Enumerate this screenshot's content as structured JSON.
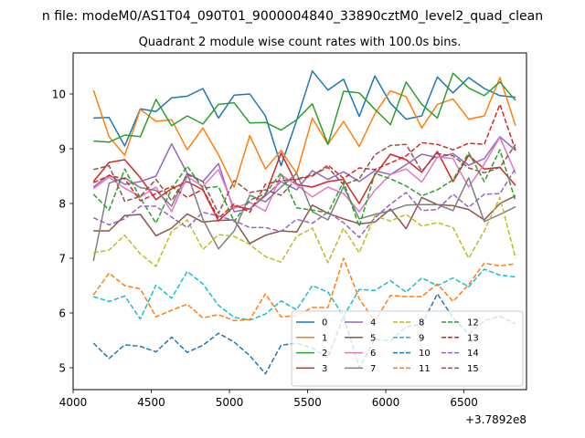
{
  "chart_data": {
    "type": "line",
    "title": "n file: modeM0/AS1T04_090T01_9000004840_33890cztM0_level2_quad_clean",
    "subtitle": "Quadrant 2 module wise count rates with 100.0s bins.",
    "xlabel": "",
    "ylabel": "",
    "x_offset_label": "+3.7892e8",
    "xlim": [
      4000,
      6900
    ],
    "ylim": [
      4.6,
      10.75
    ],
    "xticks": [
      4000,
      4500,
      5000,
      5500,
      6000,
      6500
    ],
    "xtick_labels": [
      "4000",
      "4500",
      "5000",
      "5500",
      "6000",
      "6500"
    ],
    "yticks": [
      5,
      6,
      7,
      8,
      9,
      10
    ],
    "ytick_labels": [
      "5",
      "6",
      "7",
      "8",
      "9",
      "10"
    ],
    "legend_position": "lower-right",
    "legend_columns": 4,
    "x": [
      4130,
      4230,
      4330,
      4430,
      4530,
      4630,
      4730,
      4830,
      4930,
      5030,
      5130,
      5230,
      5330,
      5430,
      5530,
      5630,
      5730,
      5830,
      5930,
      6030,
      6130,
      6230,
      6330,
      6430,
      6530,
      6630,
      6730,
      6830
    ],
    "series": [
      {
        "name": "0",
        "color": "#1f77b4",
        "dash": "solid",
        "values": [
          9.56,
          9.57,
          9.05,
          9.73,
          9.68,
          9.93,
          9.96,
          10.1,
          9.56,
          9.98,
          10.0,
          9.6,
          8.69,
          9.52,
          10.42,
          10.07,
          10.27,
          9.59,
          10.33,
          9.83,
          9.54,
          9.6,
          10.31,
          10.02,
          10.3,
          10.1,
          9.97,
          9.94
        ]
      },
      {
        "name": "1",
        "color": "#ff7f0e",
        "dash": "solid",
        "values": [
          10.07,
          9.22,
          8.88,
          9.72,
          9.5,
          9.53,
          8.98,
          9.38,
          8.89,
          8.3,
          9.24,
          8.63,
          8.97,
          8.55,
          9.56,
          9.08,
          9.5,
          9.04,
          9.64,
          10.06,
          9.95,
          9.38,
          9.81,
          9.91,
          9.54,
          9.6,
          10.3,
          9.42
        ]
      },
      {
        "name": "2",
        "color": "#2ca02c",
        "dash": "solid",
        "values": [
          9.14,
          9.12,
          9.25,
          9.22,
          9.9,
          9.42,
          9.6,
          9.45,
          9.81,
          9.84,
          9.47,
          9.48,
          9.34,
          9.53,
          9.82,
          9.08,
          10.05,
          10.02,
          9.72,
          9.44,
          10.22,
          9.81,
          9.56,
          10.38,
          10.11,
          9.97,
          10.22,
          9.88
        ]
      },
      {
        "name": "3",
        "color": "#d62728",
        "dash": "solid",
        "values": [
          8.4,
          8.75,
          8.8,
          8.47,
          8.07,
          8.27,
          8.4,
          8.25,
          7.68,
          7.95,
          7.9,
          8.16,
          8.92,
          8.35,
          8.3,
          8.4,
          8.44,
          8.0,
          8.52,
          8.9,
          8.8,
          8.57,
          8.95,
          8.4,
          8.88,
          8.63,
          8.66,
          8.33
        ]
      },
      {
        "name": "4",
        "color": "#9467bd",
        "dash": "solid",
        "values": [
          8.3,
          8.52,
          8.35,
          8.4,
          8.5,
          9.09,
          8.55,
          8.4,
          8.73,
          7.85,
          7.9,
          8.14,
          8.4,
          8.25,
          8.6,
          8.44,
          8.58,
          8.4,
          8.6,
          8.53,
          8.71,
          8.9,
          8.84,
          8.91,
          8.7,
          8.82,
          9.22,
          8.97
        ]
      },
      {
        "name": "5",
        "color": "#8c564b",
        "dash": "solid",
        "values": [
          7.5,
          7.5,
          7.78,
          7.8,
          7.41,
          7.55,
          7.81,
          7.66,
          7.69,
          7.7,
          7.27,
          7.42,
          7.5,
          7.48,
          7.97,
          7.82,
          7.72,
          7.63,
          7.66,
          7.9,
          7.54,
          8.11,
          7.98,
          7.96,
          7.89,
          7.7,
          8.0,
          8.14
        ]
      },
      {
        "name": "6",
        "color": "#e377c2",
        "dash": "solid",
        "values": [
          8.27,
          8.48,
          8.28,
          8.12,
          8.3,
          7.85,
          8.49,
          8.31,
          8.62,
          7.91,
          8.02,
          7.86,
          8.52,
          8.34,
          8.12,
          8.3,
          8.18,
          7.85,
          8.24,
          8.53,
          8.63,
          8.39,
          8.85,
          8.82,
          8.3,
          8.72,
          9.21,
          8.55
        ]
      },
      {
        "name": "7",
        "color": "#7f7f7f",
        "dash": "solid",
        "values": [
          6.95,
          8.37,
          8.47,
          8.29,
          8.24,
          7.95,
          8.55,
          7.71,
          7.17,
          7.5,
          8.15,
          8.03,
          8.3,
          8.55,
          7.85,
          7.7,
          8.31,
          7.72,
          7.8,
          7.87,
          7.97,
          7.98,
          7.98,
          7.87,
          8.47,
          7.67,
          7.8,
          7.94
        ]
      },
      {
        "name": "8",
        "color": "#bcbd22",
        "dash": "dash",
        "values": [
          7.1,
          7.15,
          7.42,
          7.08,
          6.85,
          7.49,
          7.7,
          7.16,
          7.43,
          7.4,
          7.25,
          7.03,
          6.93,
          7.4,
          7.55,
          6.92,
          7.55,
          7.1,
          7.77,
          7.68,
          7.8,
          7.59,
          7.65,
          7.56,
          7.0,
          7.5,
          8.11,
          7.0
        ]
      },
      {
        "name": "9",
        "color": "#17becf",
        "dash": "dash",
        "values": [
          6.3,
          6.21,
          6.31,
          5.89,
          6.51,
          6.27,
          6.76,
          6.53,
          6.14,
          5.92,
          5.87,
          5.98,
          6.22,
          6.06,
          6.5,
          6.38,
          5.94,
          6.43,
          6.41,
          6.59,
          6.38,
          6.64,
          6.5,
          6.64,
          6.48,
          6.8,
          6.69,
          6.66
        ]
      },
      {
        "name": "10",
        "color": "#1f77b4",
        "dash": "dash",
        "values": [
          5.45,
          5.17,
          5.42,
          5.39,
          5.29,
          5.56,
          5.28,
          5.41,
          5.63,
          5.47,
          5.22,
          4.89,
          5.41,
          5.45,
          5.36,
          5.18,
          5.94,
          5.0,
          5.52,
          5.49,
          5.75,
          5.79,
          6.35,
          5.91,
          5.62,
          5.86,
          5.94,
          5.8
        ]
      },
      {
        "name": "11",
        "color": "#ff7f0e",
        "dash": "dash",
        "values": [
          6.33,
          6.73,
          6.5,
          6.44,
          5.93,
          6.05,
          6.16,
          5.91,
          5.97,
          5.86,
          5.88,
          6.35,
          5.93,
          5.95,
          6.1,
          6.1,
          7.0,
          6.26,
          5.85,
          6.32,
          6.3,
          6.3,
          6.53,
          6.21,
          6.52,
          6.91,
          6.86,
          6.9
        ]
      },
      {
        "name": "12",
        "color": "#2ca02c",
        "dash": "dash",
        "values": [
          8.17,
          7.88,
          8.63,
          8.1,
          7.64,
          8.27,
          8.68,
          8.28,
          8.31,
          7.67,
          8.06,
          8.18,
          8.56,
          7.92,
          7.88,
          7.83,
          8.4,
          7.58,
          8.55,
          8.45,
          8.32,
          8.14,
          8.25,
          8.43,
          8.93,
          8.4,
          8.98,
          8.04
        ]
      },
      {
        "name": "13",
        "color": "#d62728",
        "dash": "dash",
        "values": [
          8.38,
          8.51,
          8.45,
          8.05,
          8.18,
          8.31,
          8.11,
          8.26,
          7.73,
          7.99,
          7.84,
          8.35,
          8.42,
          8.44,
          8.5,
          8.7,
          8.46,
          8.65,
          8.62,
          8.74,
          8.87,
          9.11,
          9.08,
          8.98,
          9.1,
          9.08,
          9.81,
          8.97
        ]
      },
      {
        "name": "14",
        "color": "#9467bd",
        "dash": "dash",
        "values": [
          7.74,
          7.61,
          7.72,
          7.95,
          7.95,
          7.75,
          7.56,
          7.84,
          7.77,
          7.69,
          7.56,
          7.56,
          7.49,
          7.71,
          7.64,
          7.84,
          7.65,
          7.38,
          7.74,
          7.99,
          8.2,
          7.87,
          7.89,
          8.17,
          7.93,
          8.17,
          8.18,
          8.64
        ]
      },
      {
        "name": "15",
        "color": "#8c564b",
        "dash": "dash",
        "values": [
          8.62,
          8.69,
          8.04,
          8.13,
          8.44,
          8.05,
          8.53,
          8.4,
          7.82,
          8.42,
          8.2,
          8.25,
          8.15,
          8.45,
          8.52,
          8.66,
          8.34,
          8.45,
          8.89,
          9.06,
          9.08,
          8.59,
          8.91,
          8.87,
          8.65,
          8.56,
          8.66,
          9.08
        ]
      }
    ]
  }
}
